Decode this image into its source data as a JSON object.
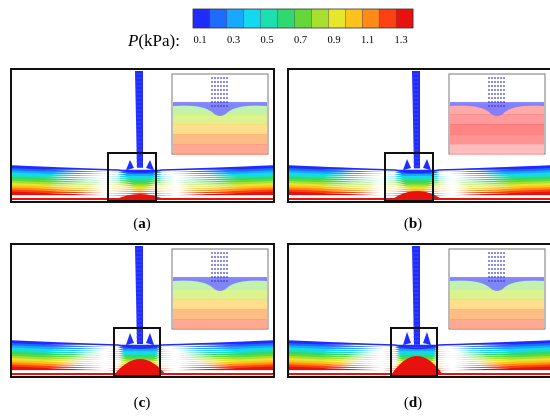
{
  "colorbar": {
    "label_var": "P",
    "label_unit": "(kPa):",
    "ticks": [
      "0.1",
      "0.3",
      "0.5",
      "0.7",
      "0.9",
      "1.1",
      "1.3"
    ],
    "colors": [
      "#1f2bff",
      "#1d6bff",
      "#17a8ff",
      "#12d8f0",
      "#1de0b0",
      "#2fd870",
      "#63d838",
      "#a8e030",
      "#e6e62a",
      "#ffc21c",
      "#ff8a18",
      "#ff4012",
      "#e8110d"
    ]
  },
  "panels": [
    {
      "id": "a",
      "caption_open": "(",
      "caption_letter": "a",
      "caption_close": ")"
    },
    {
      "id": "b",
      "caption_open": "(",
      "caption_letter": "b",
      "caption_close": ")"
    },
    {
      "id": "c",
      "caption_open": "(",
      "caption_letter": "c",
      "caption_close": ")"
    },
    {
      "id": "d",
      "caption_open": "(",
      "caption_letter": "d",
      "caption_close": ")"
    }
  ]
}
